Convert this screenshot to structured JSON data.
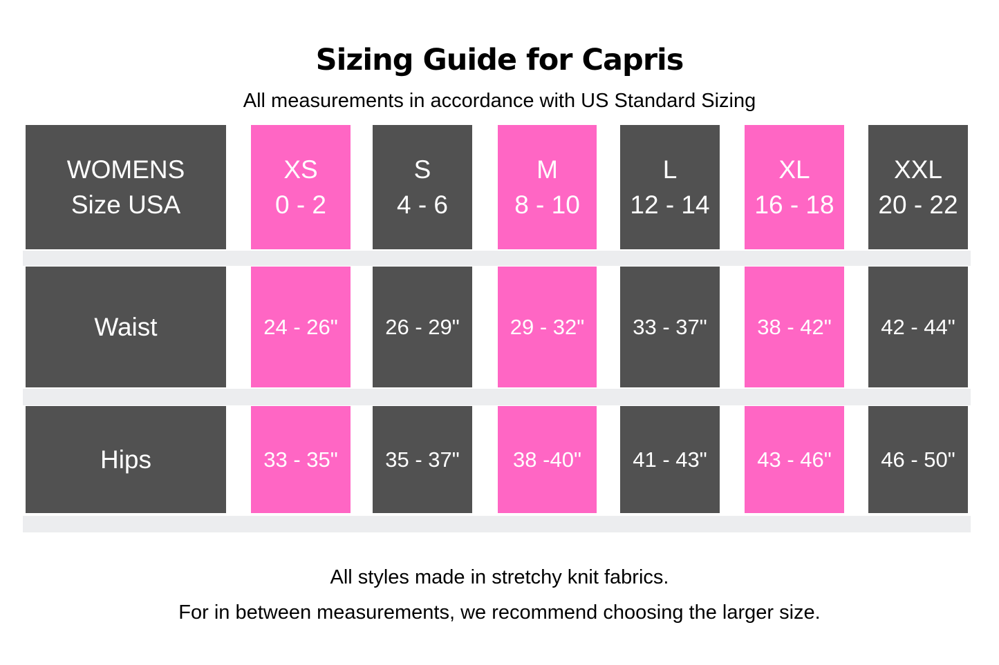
{
  "colors": {
    "pink": "#ff66c4",
    "dark": "#515151",
    "band": "#ecedef",
    "cell_text": "#ffffff",
    "page_text": "#000000"
  },
  "header": {
    "title": "Sizing Guide for Capris",
    "subtitle": "All measurements in accordance with US Standard Sizing"
  },
  "table": {
    "corner": {
      "line1": "WOMENS",
      "line2": "Size USA"
    },
    "columns": [
      {
        "label": "XS",
        "range": "0 - 2",
        "highlight": true
      },
      {
        "label": "S",
        "range": "4 - 6",
        "highlight": false
      },
      {
        "label": "M",
        "range": "8 - 10",
        "highlight": true
      },
      {
        "label": "L",
        "range": "12 - 14",
        "highlight": false
      },
      {
        "label": "XL",
        "range": "16 - 18",
        "highlight": true
      },
      {
        "label": "XXL",
        "range": "20 - 22",
        "highlight": false
      }
    ],
    "rows": [
      {
        "label": "Waist",
        "values": [
          "24 - 26\"",
          "26 - 29\"",
          "29 - 32\"",
          "33 - 37\"",
          "38 - 42\"",
          "42 - 44\""
        ]
      },
      {
        "label": "Hips",
        "values": [
          "33 - 35\"",
          "35 - 37\"",
          "38 -40\"",
          "41 - 43\"",
          "43 - 46\"",
          "46 - 50\""
        ]
      }
    ]
  },
  "footer": {
    "line1": "All styles made in stretchy knit fabrics.",
    "line2": "For in between measurements, we recommend choosing the larger size."
  }
}
